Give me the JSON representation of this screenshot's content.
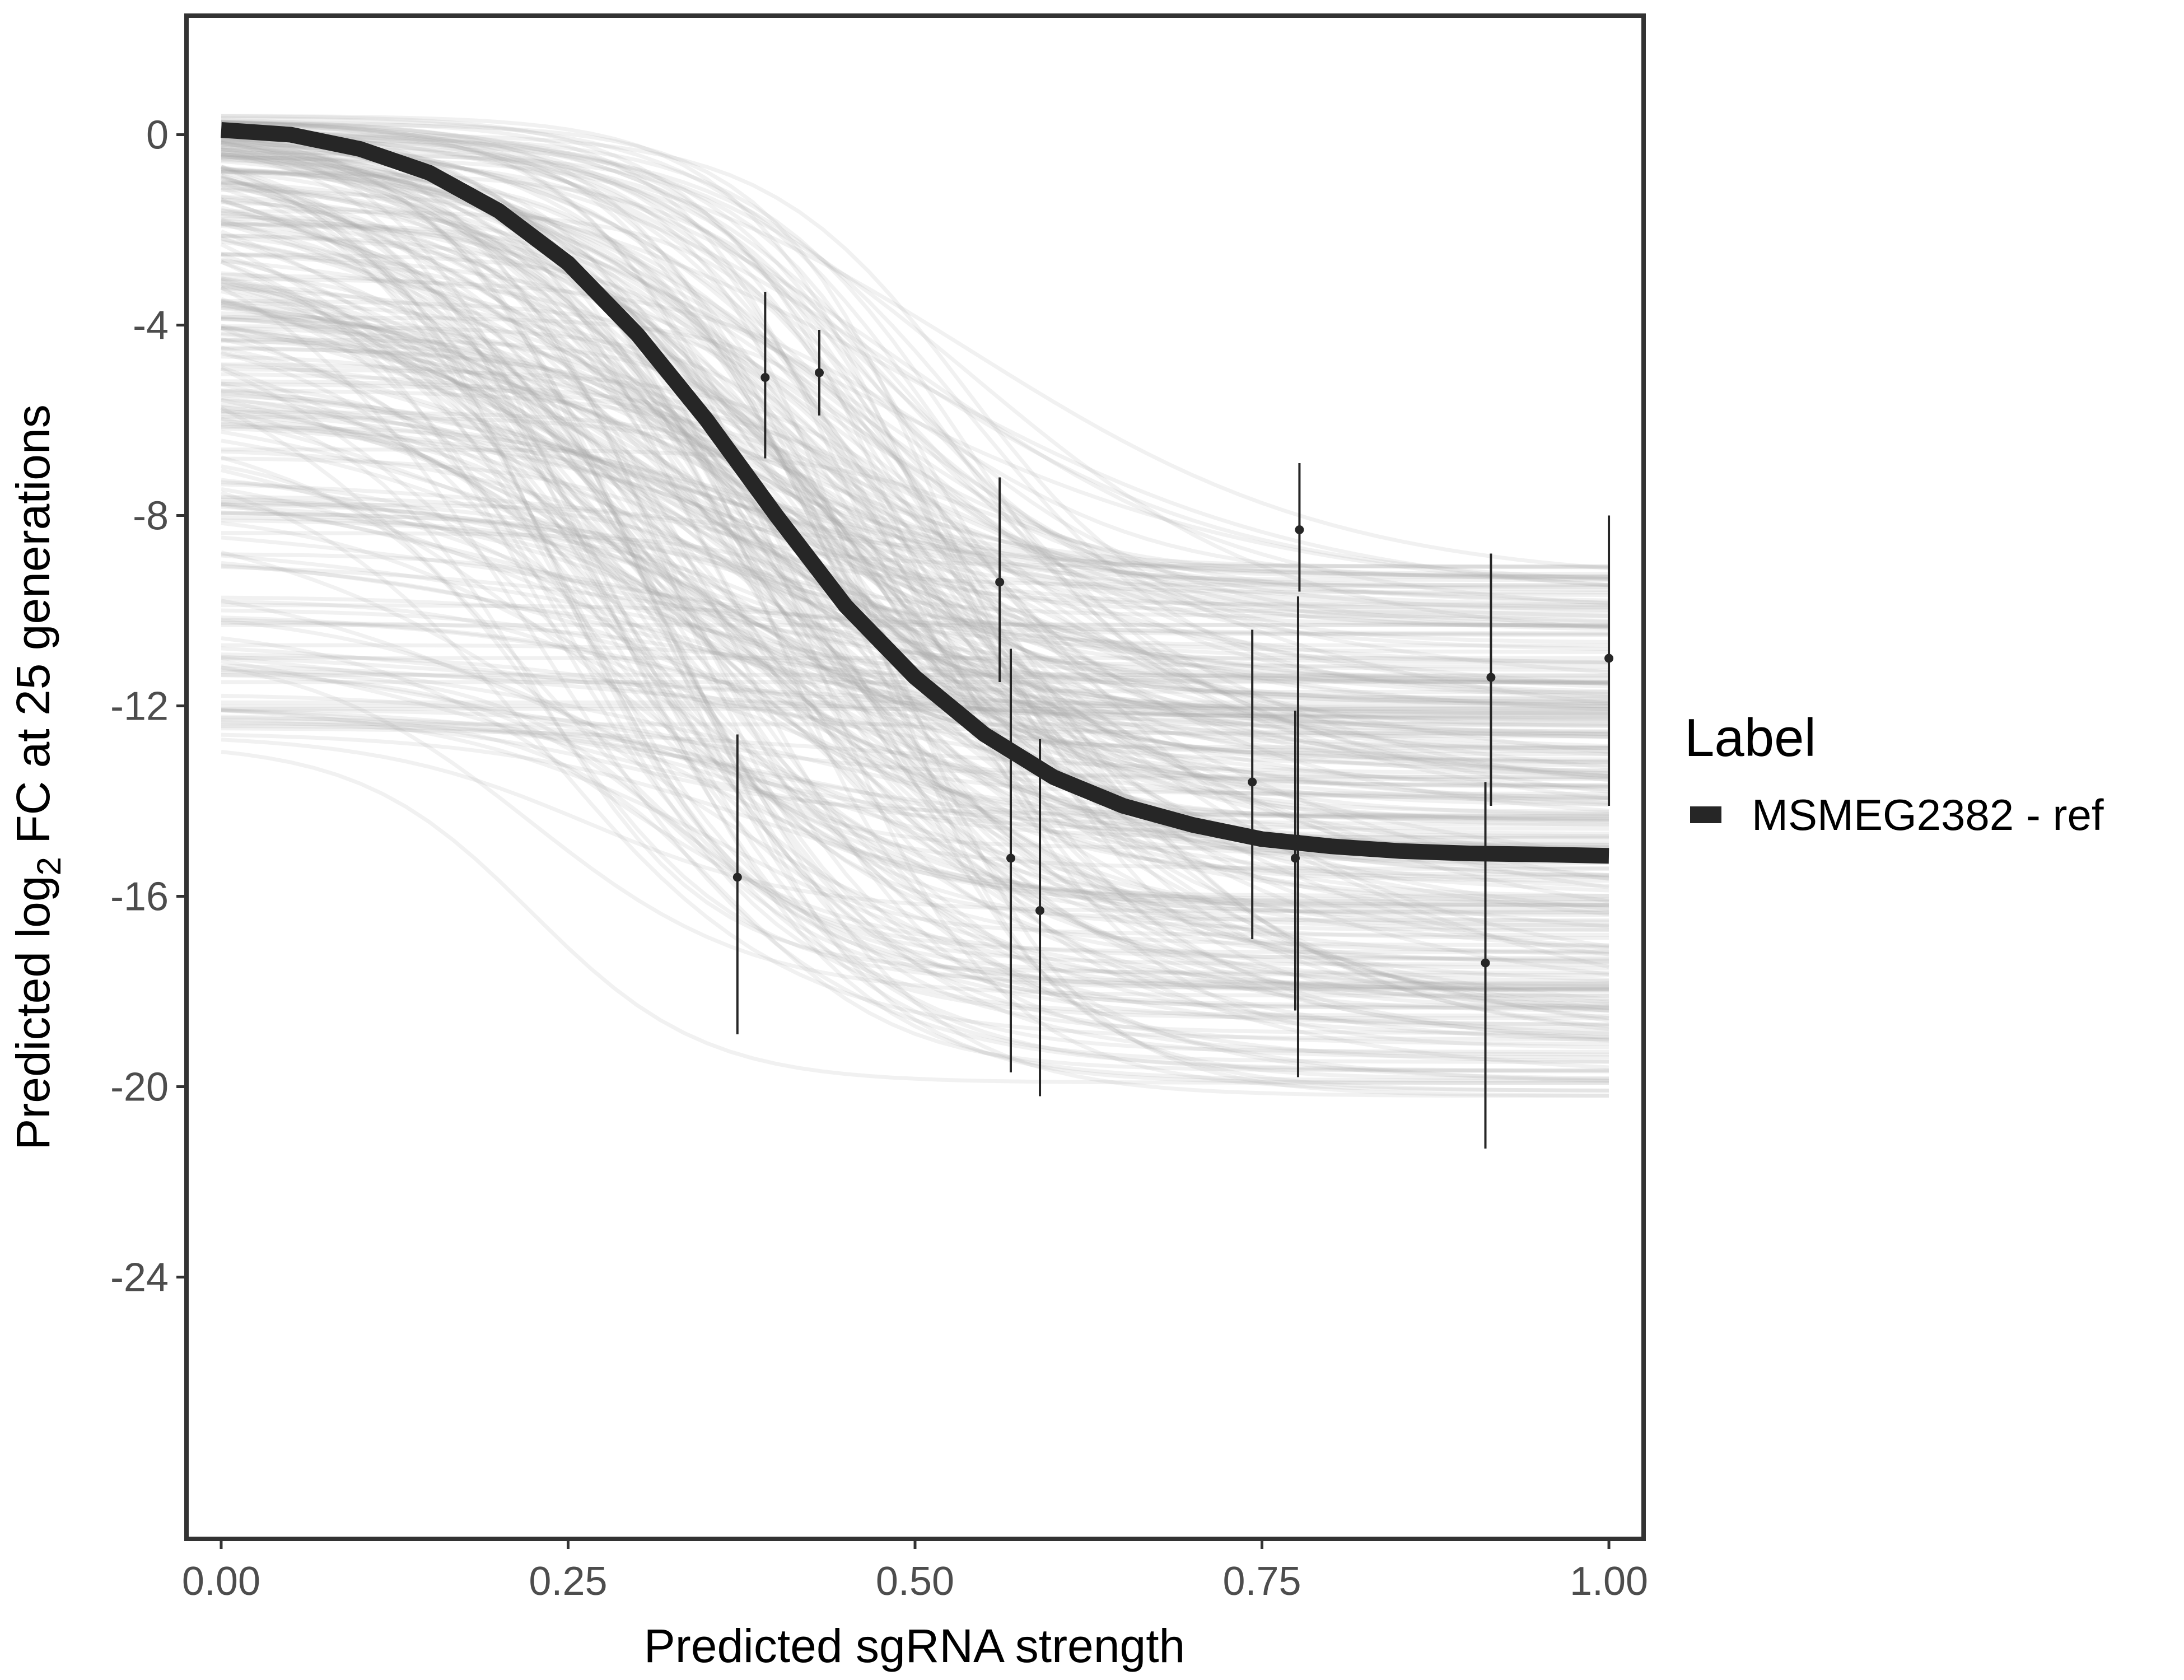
{
  "chart_data": {
    "type": "line",
    "xlabel": "Predicted sgRNA strength",
    "ylabel_parts": [
      "Predicted  log",
      "2",
      " FC at 25 generations"
    ],
    "xlim": [
      -0.025,
      1.025
    ],
    "ylim": [
      -29.5,
      2.5
    ],
    "x_ticks": [
      0.0,
      0.25,
      0.5,
      0.75,
      1.0
    ],
    "x_tick_labels": [
      "0.00",
      "0.25",
      "0.50",
      "0.75",
      "1.00"
    ],
    "y_ticks": [
      0,
      -4,
      -8,
      -12,
      -16,
      -20,
      -24
    ],
    "y_tick_labels": [
      "0",
      "-4",
      "-8",
      "-12",
      "-16",
      "-20",
      "-24"
    ],
    "grid": false,
    "legend": {
      "title": "Label",
      "placement": "right",
      "entries": [
        "MSMEG2382 - ref"
      ]
    },
    "colors": {
      "fit_line": "#262626",
      "draws": "#a9a9a9",
      "points": "#262626",
      "frame": "#333333"
    },
    "fit_curve": {
      "x": [
        0.0,
        0.05,
        0.1,
        0.15,
        0.2,
        0.25,
        0.3,
        0.35,
        0.4,
        0.45,
        0.5,
        0.55,
        0.6,
        0.65,
        0.7,
        0.75,
        0.8,
        0.85,
        0.9,
        0.95,
        1.0
      ],
      "y": [
        0.1,
        0.0,
        -0.3,
        -0.8,
        -1.6,
        -2.7,
        -4.2,
        -6.0,
        -8.0,
        -9.9,
        -11.4,
        -12.6,
        -13.5,
        -14.1,
        -14.5,
        -14.8,
        -14.95,
        -15.05,
        -15.1,
        -15.12,
        -15.15
      ]
    },
    "posterior_draws_note_count": 300,
    "points": [
      {
        "x": 0.372,
        "y": -15.6,
        "lo": -18.9,
        "hi": -12.6
      },
      {
        "x": 0.392,
        "y": -5.1,
        "lo": -6.8,
        "hi": -3.3
      },
      {
        "x": 0.431,
        "y": -5.0,
        "lo": -5.9,
        "hi": -4.1
      },
      {
        "x": 0.561,
        "y": -9.4,
        "lo": -11.5,
        "hi": -7.2
      },
      {
        "x": 0.569,
        "y": -15.2,
        "lo": -19.7,
        "hi": -10.8
      },
      {
        "x": 0.59,
        "y": -16.3,
        "lo": -20.2,
        "hi": -12.7
      },
      {
        "x": 0.743,
        "y": -13.6,
        "lo": -16.9,
        "hi": -10.4
      },
      {
        "x": 0.774,
        "y": -15.2,
        "lo": -18.4,
        "hi": -12.1
      },
      {
        "x": 0.776,
        "y": -14.8,
        "lo": -19.8,
        "hi": -9.7
      },
      {
        "x": 0.777,
        "y": -8.3,
        "lo": -9.6,
        "hi": -6.9
      },
      {
        "x": 0.911,
        "y": -17.4,
        "lo": -21.3,
        "hi": -13.6
      },
      {
        "x": 0.915,
        "y": -11.4,
        "lo": -14.1,
        "hi": -8.8
      },
      {
        "x": 1.0,
        "y": -11.0,
        "lo": -14.1,
        "hi": -8.0
      }
    ]
  }
}
